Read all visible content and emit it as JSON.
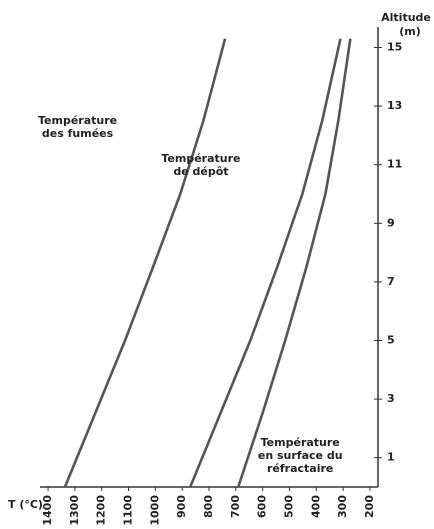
{
  "chart_data": {
    "type": "line",
    "x_label": "T (°C)",
    "y_label": [
      "Altitude",
      "(m)"
    ],
    "xlim": [
      1430,
      170
    ],
    "ylim": [
      0,
      15.7
    ],
    "xticks": [
      1400,
      1300,
      1200,
      1100,
      1000,
      900,
      800,
      700,
      600,
      500,
      400,
      300,
      200
    ],
    "yticks": [
      1,
      3,
      5,
      7,
      9,
      11,
      13,
      15
    ],
    "grid": false,
    "series": [
      {
        "color": "#555555",
        "x": [
          1337,
          1225,
          1113,
          1009,
          907,
          821,
          740
        ],
        "values": [
          0,
          2.5,
          5,
          7.5,
          10,
          12.5,
          15.3
        ]
      },
      {
        "color": "#555555",
        "x": [
          870,
          758,
          646,
          546,
          452,
          378,
          310
        ],
        "values": [
          0,
          2.5,
          5,
          7.5,
          10,
          12.5,
          15.3
        ]
      },
      {
        "color": "#555555",
        "x": [
          691,
          601,
          516,
          437,
          366,
          318,
          273
        ],
        "values": [
          0,
          2.5,
          5,
          7.5,
          10,
          12.5,
          15.3
        ]
      }
    ],
    "annotations": [
      {
        "text": [
          "Température",
          "des fumées"
        ],
        "x": 1290,
        "y": 12.5
      },
      {
        "text": [
          "Température",
          "de dépôt"
        ],
        "x": 830,
        "y": 11.2
      },
      {
        "text": [
          "Température",
          "en surface du",
          "réfractaire"
        ],
        "x": 460,
        "y": 1.5
      }
    ]
  }
}
